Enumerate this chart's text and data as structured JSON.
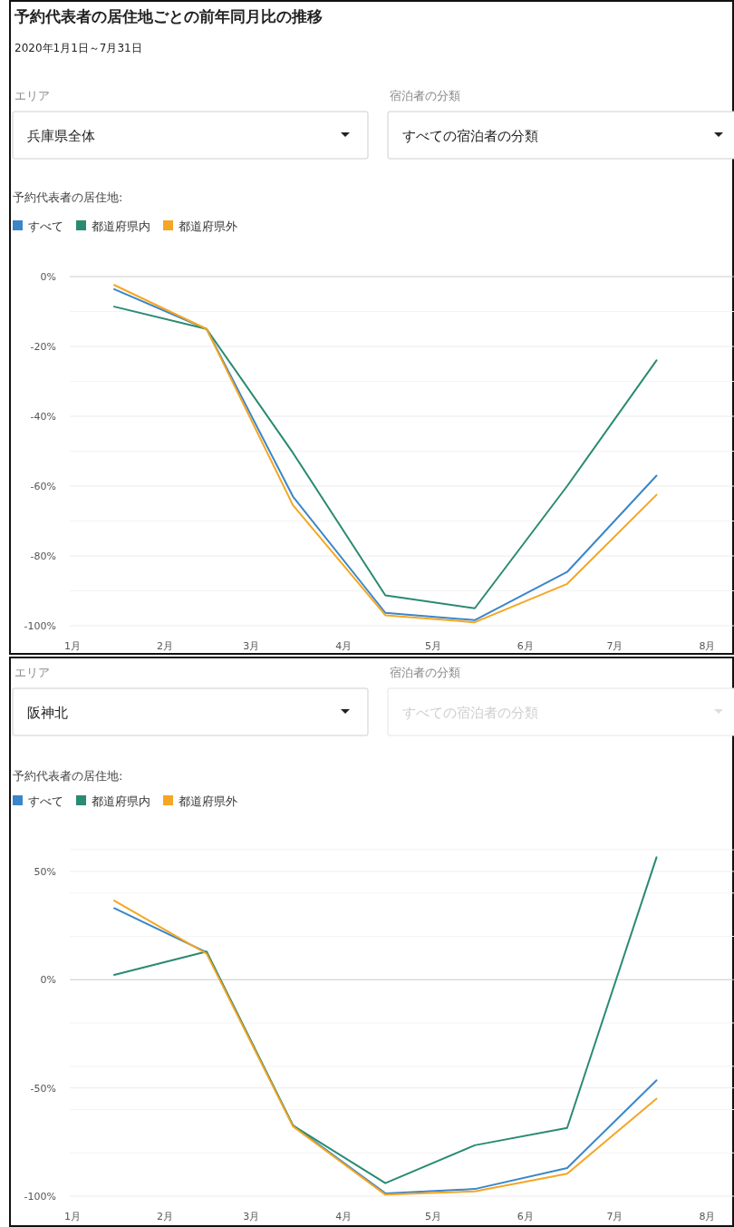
{
  "chart_data": [
    {
      "type": "line",
      "title": "予約代表者の居住地ごとの前年同月比の推移",
      "subtitle": "2020年1月1日～7月31日",
      "annotations": [
        "エリア",
        "兵庫県全体",
        "宿泊者の分類",
        "すべての宿泊者の分類"
      ],
      "legend_title": "予約代表者の居住地:",
      "legend": "top left",
      "grid": "y",
      "marker": "none",
      "line_style": "solid",
      "x": [
        "2020-01-15",
        "2020-02-15",
        "2020-03-15",
        "2020-04-15",
        "2020-05-15",
        "2020-06-15",
        "2020-07-15"
      ],
      "xlim": [
        "2020-01-01",
        "2020-08-10"
      ],
      "xticks": [
        {
          "value": "2020-01-01",
          "label": "1月"
        },
        {
          "value": "2020-02-01",
          "label": "2月"
        },
        {
          "value": "2020-03-01",
          "label": "3月"
        },
        {
          "value": "2020-04-01",
          "label": "4月"
        },
        {
          "value": "2020-05-01",
          "label": "5月"
        },
        {
          "value": "2020-06-01",
          "label": "6月"
        },
        {
          "value": "2020-07-01",
          "label": "7月"
        },
        {
          "value": "2020-08-01",
          "label": "8月"
        }
      ],
      "ylim": [
        -100,
        0
      ],
      "yticks": [
        {
          "value": -100,
          "label": "-100%"
        },
        {
          "value": -90,
          "label": null
        },
        {
          "value": -80,
          "label": "-80%"
        },
        {
          "value": -70,
          "label": null
        },
        {
          "value": -60,
          "label": "-60%"
        },
        {
          "value": -50,
          "label": null
        },
        {
          "value": -40,
          "label": "-40%"
        },
        {
          "value": -30,
          "label": null
        },
        {
          "value": -20,
          "label": "-20%"
        },
        {
          "value": -10,
          "label": null
        },
        {
          "value": 0,
          "label": "0%"
        }
      ],
      "series": [
        {
          "name": "すべて",
          "color": "#3a86c8",
          "values": [
            -3.6,
            -15,
            -63,
            -96.3,
            -98.4,
            -84.6,
            -57
          ]
        },
        {
          "name": "都道府県内",
          "color": "#2a8a72",
          "values": [
            -8.6,
            -15,
            -50.5,
            -91.3,
            -95,
            -60,
            -24
          ]
        },
        {
          "name": "都道府県外",
          "color": "#f5a623",
          "values": [
            -2.4,
            -15,
            -65.5,
            -97,
            -99,
            -88,
            -62.5
          ]
        }
      ]
    },
    {
      "type": "line",
      "annotations": [
        "エリア",
        "阪神北",
        "宿泊者の分類",
        "すべての宿泊者の分類"
      ],
      "legend_title": "予約代表者の居住地:",
      "legend": "top left",
      "grid": "y",
      "marker": "none",
      "line_style": "solid",
      "x": [
        "2020-01-15",
        "2020-02-15",
        "2020-03-15",
        "2020-04-15",
        "2020-05-15",
        "2020-06-15",
        "2020-07-15"
      ],
      "xlim": [
        "2020-01-01",
        "2020-08-10"
      ],
      "xticks": [
        {
          "value": "2020-01-01",
          "label": "1月"
        },
        {
          "value": "2020-02-01",
          "label": "2月"
        },
        {
          "value": "2020-03-01",
          "label": "3月"
        },
        {
          "value": "2020-04-01",
          "label": "4月"
        },
        {
          "value": "2020-05-01",
          "label": "5月"
        },
        {
          "value": "2020-06-01",
          "label": "6月"
        },
        {
          "value": "2020-07-01",
          "label": "7月"
        },
        {
          "value": "2020-08-01",
          "label": "8月"
        }
      ],
      "ylim": [
        -100,
        60
      ],
      "yticks": [
        {
          "value": -100,
          "label": "-100%"
        },
        {
          "value": -80,
          "label": null
        },
        {
          "value": -60,
          "label": null
        },
        {
          "value": -50,
          "label": "-50%"
        },
        {
          "value": -40,
          "label": null
        },
        {
          "value": -20,
          "label": null
        },
        {
          "value": 0,
          "label": "0%"
        },
        {
          "value": 20,
          "label": null
        },
        {
          "value": 40,
          "label": null
        },
        {
          "value": 50,
          "label": "50%"
        },
        {
          "value": 60,
          "label": null
        }
      ],
      "series": [
        {
          "name": "すべて",
          "color": "#3a86c8",
          "values": [
            33,
            12.6,
            -67.4,
            -98.7,
            -96.7,
            -87,
            -46.5
          ]
        },
        {
          "name": "都道府県内",
          "color": "#2a8a72",
          "values": [
            2.2,
            13,
            -67.4,
            -94,
            -76.5,
            -68.5,
            56.5
          ]
        },
        {
          "name": "都道府県外",
          "color": "#f5a623",
          "values": [
            36.5,
            12,
            -67.8,
            -99.3,
            -97.8,
            -89.6,
            -55
          ]
        }
      ]
    }
  ]
}
